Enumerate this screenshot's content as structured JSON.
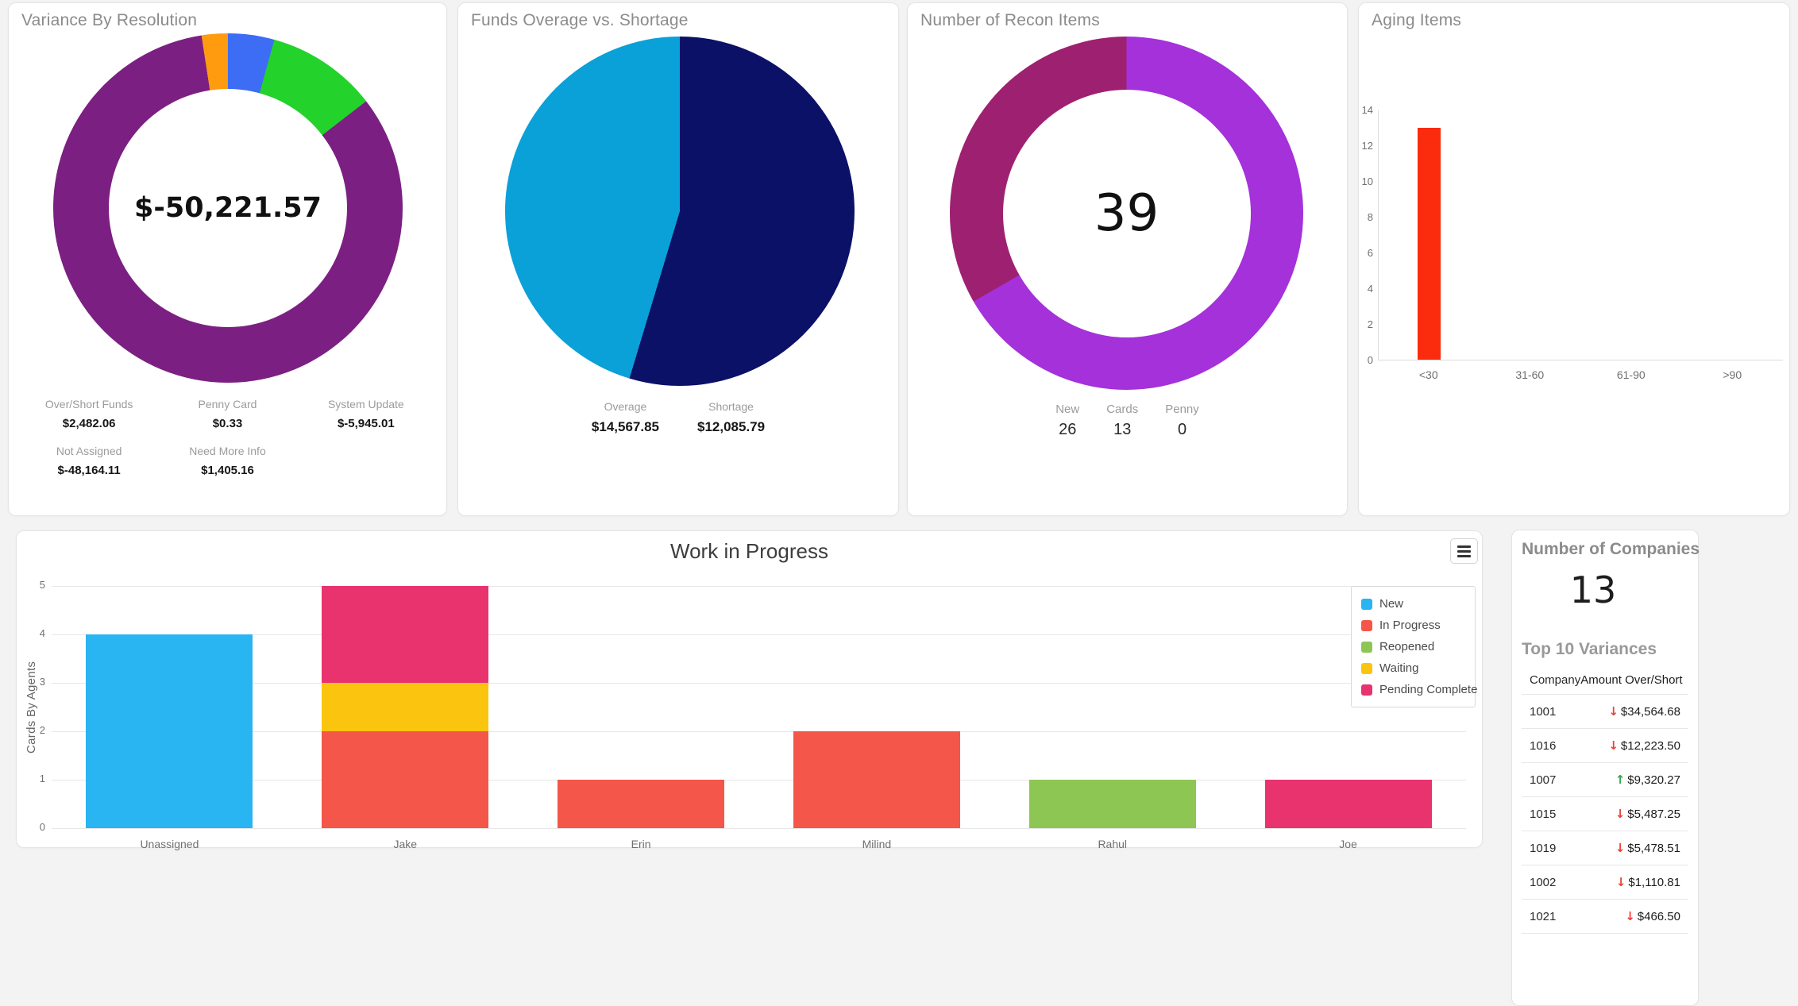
{
  "companies_panel": {
    "title": "Number of Companies",
    "count": "13"
  },
  "icons": {
    "wip_menu": "hamburger-icon"
  },
  "chart_data": [
    {
      "id": "variance_by_resolution",
      "type": "pie",
      "subtype": "donut",
      "title": "Variance By Resolution",
      "center_label": "$-50,221.57",
      "hole_ratio": 0.68,
      "legend_position": "bottom",
      "segments": [
        {
          "label": "Over/Short Funds",
          "value": 2482.06,
          "amount_display": "$2,482.06",
          "color": "#3D6CF5"
        },
        {
          "label": "Penny Card",
          "value": 0.33,
          "amount_display": "$0.33",
          "color": "#CCCCCC"
        },
        {
          "label": "System Update",
          "value": -5945.01,
          "amount_display": "$-5,945.01",
          "color": "#23D22B"
        },
        {
          "label": "Not Assigned",
          "value": -48164.11,
          "amount_display": "$-48,164.11",
          "color": "#7B2082"
        },
        {
          "label": "Need More Info",
          "value": 1405.16,
          "amount_display": "$1,405.16",
          "color": "#FE9B0F"
        }
      ]
    },
    {
      "id": "funds_overage_vs_shortage",
      "type": "pie",
      "subtype": "pie",
      "title": "Funds Overage vs. Shortage",
      "legend_position": "bottom",
      "segments": [
        {
          "label": "Overage",
          "value": 14567.85,
          "amount_display": "$14,567.85",
          "color": "#0B1167"
        },
        {
          "label": "Shortage",
          "value": 12085.79,
          "amount_display": "$12,085.79",
          "color": "#0AA0D8"
        }
      ]
    },
    {
      "id": "number_of_recon_items",
      "type": "pie",
      "subtype": "donut",
      "title": "Number of Recon Items",
      "center_label": "39",
      "hole_ratio": 0.7,
      "legend_position": "bottom",
      "segments": [
        {
          "label": "New",
          "value": 26,
          "amount_display": "26",
          "color": "#A431DA"
        },
        {
          "label": "Cards",
          "value": 13,
          "amount_display": "13",
          "color": "#9E2070"
        },
        {
          "label": "Penny",
          "value": 0,
          "amount_display": "0",
          "color": "#CCCCCC"
        }
      ]
    },
    {
      "id": "aging_items",
      "type": "bar",
      "title": "Aging Items",
      "categories": [
        "<30",
        "31-60",
        "61-90",
        ">90"
      ],
      "values": [
        13,
        0,
        0,
        0
      ],
      "bar_color": "#FB2B0D",
      "xlabel": "",
      "ylabel": "",
      "ylim": [
        0,
        14
      ],
      "yticks": [
        0,
        2,
        4,
        6,
        8,
        10,
        12,
        14
      ],
      "grid": false
    },
    {
      "id": "work_in_progress",
      "type": "bar",
      "subtype": "stacked-column",
      "title": "Work in Progress",
      "xlabel": "",
      "ylabel": "Cards By Agents",
      "categories": [
        "Unassigned",
        "Jake",
        "Erin",
        "Milind",
        "Rahul",
        "Joe"
      ],
      "series": [
        {
          "name": "New",
          "color": "#29B4F2",
          "values": [
            4,
            0,
            0,
            0,
            0,
            0
          ]
        },
        {
          "name": "In Progress",
          "color": "#F4564A",
          "values": [
            0,
            2,
            1,
            2,
            0,
            0
          ]
        },
        {
          "name": "Reopened",
          "color": "#8EC654",
          "values": [
            0,
            0,
            0,
            0,
            1,
            0
          ]
        },
        {
          "name": "Waiting",
          "color": "#FBC40F",
          "values": [
            0,
            1,
            0,
            0,
            0,
            0
          ]
        },
        {
          "name": "Pending Complete",
          "color": "#E8336F",
          "values": [
            0,
            2,
            0,
            0,
            0,
            1
          ]
        }
      ],
      "ylim": [
        0,
        5
      ],
      "yticks": [
        0,
        1,
        2,
        3,
        4,
        5
      ],
      "grid": true,
      "legend_position": "top-right"
    },
    {
      "id": "top_10_variances",
      "type": "table",
      "title": "Top 10 Variances",
      "columns": [
        "Company",
        "Amount Over/Short"
      ],
      "rows": [
        {
          "company": "1001",
          "amount": "$34,564.68",
          "direction": "down"
        },
        {
          "company": "1016",
          "amount": "$12,223.50",
          "direction": "down"
        },
        {
          "company": "1007",
          "amount": "$9,320.27",
          "direction": "up"
        },
        {
          "company": "1015",
          "amount": "$5,487.25",
          "direction": "down"
        },
        {
          "company": "1019",
          "amount": "$5,478.51",
          "direction": "down"
        },
        {
          "company": "1002",
          "amount": "$1,110.81",
          "direction": "down"
        },
        {
          "company": "1021",
          "amount": "$466.50",
          "direction": "down"
        }
      ],
      "arrow_glyphs": {
        "down": "↓",
        "up": "↑"
      },
      "arrow_colors": {
        "down": "#EE4037",
        "up": "#2EA84C"
      }
    }
  ]
}
